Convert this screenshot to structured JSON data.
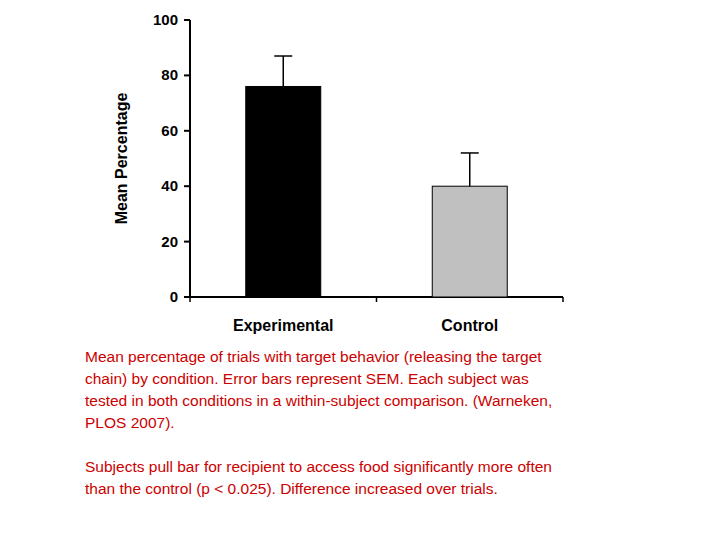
{
  "chart_data": {
    "type": "bar",
    "categories": [
      "Experimental",
      "Control"
    ],
    "values": [
      76,
      40
    ],
    "errors": [
      11,
      12
    ],
    "colors": [
      "#000000",
      "#c0c0c0"
    ],
    "y_label": "Mean Percentage",
    "ylim": [
      0,
      100
    ],
    "yticks": [
      0,
      20,
      40,
      60,
      80,
      100
    ],
    "caption": [
      [
        "Mean percentage of trials with target behavior (releasing the target",
        "chain) by condition. Error bars represent SEM. Each subject was",
        "tested in both conditions in a within-subject comparison. (Warneken,",
        "PLOS 2007)."
      ],
      [
        "Subjects pull bar for recipient to access food significantly more often",
        "than the control (p < 0.025).  Difference increased over trials."
      ]
    ]
  }
}
